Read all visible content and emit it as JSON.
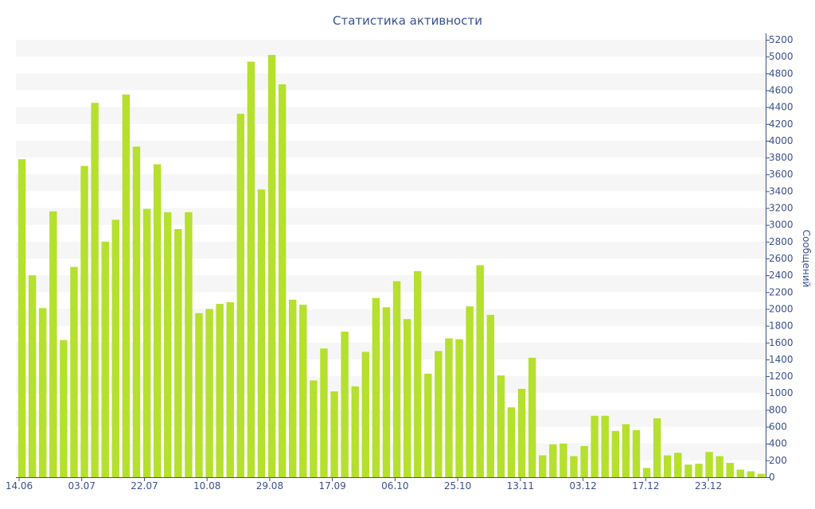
{
  "chart_data": {
    "type": "bar",
    "title": "Статистика активности",
    "ylabel": "Сообщений",
    "xlabel": "",
    "ylim": [
      0,
      5200
    ],
    "y_ticks": [
      0,
      200,
      400,
      600,
      800,
      1000,
      1200,
      1400,
      1600,
      1800,
      2000,
      2200,
      2400,
      2600,
      2800,
      3000,
      3200,
      3400,
      3600,
      3800,
      4000,
      4200,
      4400,
      4600,
      4800,
      5000,
      5200
    ],
    "x_tick_labels": [
      "14.06",
      "03.07",
      "22.07",
      "10.08",
      "29.08",
      "17.09",
      "06.10",
      "25.10",
      "13.11",
      "03.12",
      "17.12",
      "23.12"
    ],
    "values": [
      3780,
      2400,
      2010,
      3160,
      1630,
      2500,
      3700,
      4450,
      2800,
      3060,
      4550,
      3930,
      3190,
      3720,
      3150,
      2950,
      3150,
      1950,
      2000,
      2060,
      2080,
      4320,
      4940,
      3420,
      5020,
      4670,
      2110,
      2050,
      1150,
      1530,
      1020,
      1730,
      1080,
      1490,
      2130,
      2020,
      2330,
      1880,
      2450,
      1230,
      1500,
      1650,
      1640,
      2030,
      2520,
      1930,
      1210,
      830,
      1050,
      1420,
      260,
      390,
      400,
      250,
      370,
      730,
      730,
      550,
      630,
      560,
      110,
      700,
      260,
      290,
      150,
      160,
      300,
      250,
      170,
      90,
      70,
      40
    ],
    "bar_color": "#b5e02e",
    "band_color": "#f6f6f6",
    "text_color": "#3b4f8f",
    "axis_color": "#3b4f8f",
    "grid": "alternating horizontal bands",
    "y_axis_side": "right"
  }
}
